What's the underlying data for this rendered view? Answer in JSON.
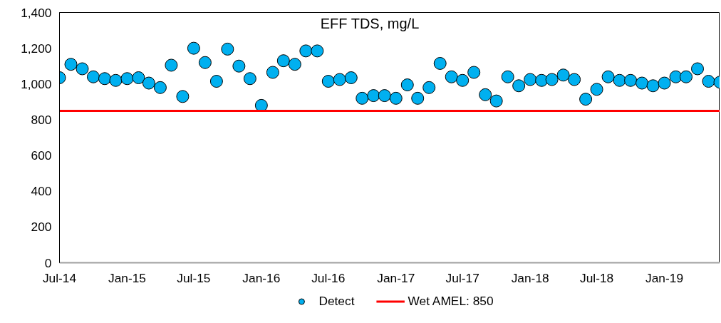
{
  "chart_data": {
    "type": "scatter",
    "title": "EFF TDS, mg/L",
    "x": [
      "2014-07",
      "2014-08",
      "2014-09",
      "2014-10",
      "2014-11",
      "2014-12",
      "2015-01",
      "2015-02",
      "2015-03",
      "2015-04",
      "2015-05",
      "2015-06",
      "2015-07",
      "2015-08",
      "2015-09",
      "2015-10",
      "2015-11",
      "2015-12",
      "2016-01",
      "2016-02",
      "2016-03",
      "2016-04",
      "2016-05",
      "2016-06",
      "2016-07",
      "2016-08",
      "2016-09",
      "2016-10",
      "2016-11",
      "2016-12",
      "2017-01",
      "2017-02",
      "2017-03",
      "2017-04",
      "2017-05",
      "2017-06",
      "2017-07",
      "2017-08",
      "2017-09",
      "2017-10",
      "2017-11",
      "2017-12",
      "2018-01",
      "2018-02",
      "2018-03",
      "2018-04",
      "2018-05",
      "2018-06",
      "2018-07",
      "2018-08",
      "2018-09",
      "2018-10",
      "2018-11",
      "2018-12",
      "2019-01",
      "2019-02",
      "2019-03",
      "2019-04",
      "2019-05",
      "2019-06"
    ],
    "series": [
      {
        "name": "Detect",
        "color": "#00b0f0",
        "values": [
          1035,
          1110,
          1085,
          1040,
          1030,
          1020,
          1030,
          1035,
          1005,
          980,
          1105,
          930,
          1200,
          1120,
          1015,
          1195,
          1100,
          1030,
          880,
          1065,
          1130,
          1110,
          1185,
          1185,
          1015,
          1025,
          1035,
          920,
          935,
          935,
          920,
          995,
          920,
          980,
          1115,
          1040,
          1020,
          1065,
          940,
          905,
          1040,
          990,
          1025,
          1020,
          1025,
          1050,
          1025,
          915,
          970,
          1040,
          1020,
          1020,
          1005,
          990,
          1005,
          1040,
          1040,
          1085,
          1015,
          1010
        ]
      }
    ],
    "marker": "circle",
    "ref_lines": [
      {
        "axis": "y",
        "value": 850,
        "label": "Wet AMEL: 850",
        "color": "#ff0000",
        "line_style": "solid"
      }
    ],
    "xlim": [
      "2014-07",
      "2019-06"
    ],
    "xticks": [
      {
        "value": "2014-07",
        "label": "Jul-14"
      },
      {
        "value": "2015-01",
        "label": "Jan-15"
      },
      {
        "value": "2015-07",
        "label": "Jul-15"
      },
      {
        "value": "2016-01",
        "label": "Jan-16"
      },
      {
        "value": "2016-07",
        "label": "Jul-16"
      },
      {
        "value": "2017-01",
        "label": "Jan-17"
      },
      {
        "value": "2017-07",
        "label": "Jul-17"
      },
      {
        "value": "2018-01",
        "label": "Jan-18"
      },
      {
        "value": "2018-07",
        "label": "Jul-18"
      },
      {
        "value": "2019-01",
        "label": "Jan-19"
      }
    ],
    "ylim": [
      0,
      1400
    ],
    "yticks": [
      {
        "value": 0,
        "label": "0"
      },
      {
        "value": 200,
        "label": "200"
      },
      {
        "value": 400,
        "label": "400"
      },
      {
        "value": 600,
        "label": "600"
      },
      {
        "value": 800,
        "label": "800"
      },
      {
        "value": 1000,
        "label": "1,000"
      },
      {
        "value": 1200,
        "label": "1,200"
      },
      {
        "value": 1400,
        "label": "1,400"
      }
    ],
    "grid": false,
    "legend": "bottom"
  }
}
